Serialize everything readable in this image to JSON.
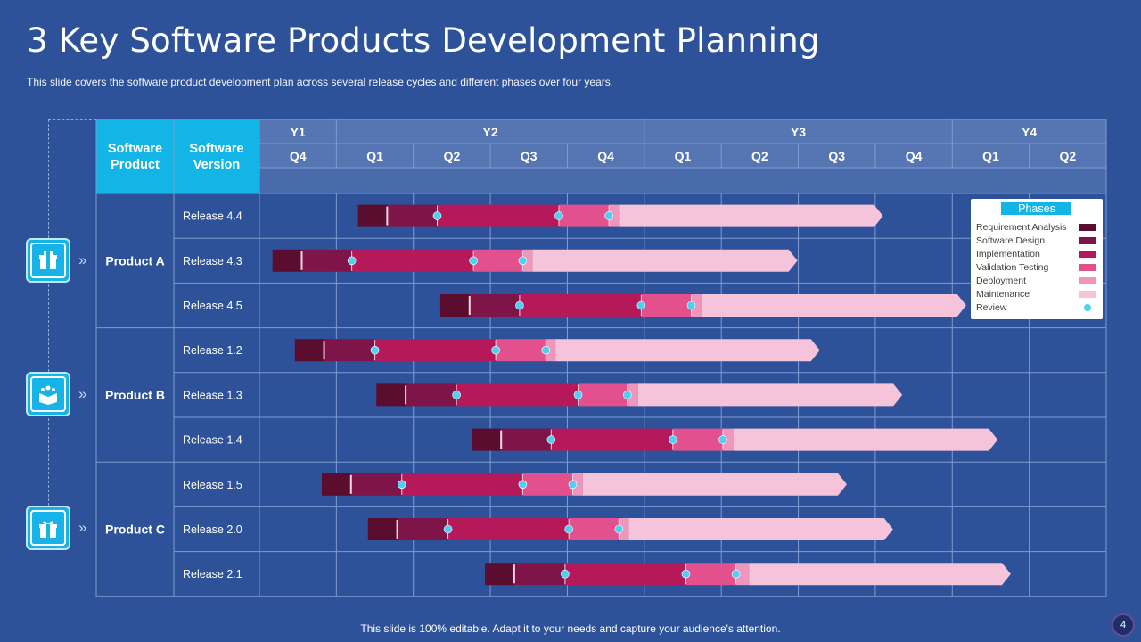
{
  "slide": {
    "title": "3 Key Software Products Development Planning",
    "subtitle": "This slide covers the software product development plan across several release cycles and different phases over four years.",
    "footer": "This slide is 100% editable. Adapt it to your needs and capture your audience's attention.",
    "page_number": "4"
  },
  "table": {
    "col_product": "Software Product",
    "col_version": "Software Version",
    "years": [
      {
        "label": "Y1",
        "quarters": 1
      },
      {
        "label": "Y2",
        "quarters": 4
      },
      {
        "label": "Y3",
        "quarters": 4
      },
      {
        "label": "Y4",
        "quarters": 2
      }
    ],
    "quarters": [
      "Q4",
      "Q1",
      "Q2",
      "Q3",
      "Q4",
      "Q1",
      "Q2",
      "Q3",
      "Q4",
      "Q1",
      "Q2"
    ]
  },
  "products": [
    {
      "name": "Product A",
      "releases": [
        "Release 4.4",
        "Release 4.3",
        "Release 4.5"
      ]
    },
    {
      "name": "Product B",
      "releases": [
        "Release 1.2",
        "Release 1.3",
        "Release 1.4"
      ]
    },
    {
      "name": "Product C",
      "releases": [
        "Release 1.5",
        "Release 2.0",
        "Release 2.1"
      ]
    }
  ],
  "legend": {
    "title": "Phases",
    "items": [
      {
        "label": "Requirement Analysis",
        "color": "#5a0d2e"
      },
      {
        "label": "Software Design",
        "color": "#7e1448"
      },
      {
        "label": "Implementation",
        "color": "#b5195a"
      },
      {
        "label": "Validation Testing",
        "color": "#e2508d"
      },
      {
        "label": "Deployment",
        "color": "#ee96bc"
      },
      {
        "label": "Maintenance",
        "color": "#f5c4da"
      },
      {
        "label": "Review",
        "color": "#4fd0f0"
      }
    ]
  },
  "colors": {
    "background": "#2d5299",
    "header_cyan": "#12b5e5",
    "header_blue": "#5575b3",
    "grid_line": "#7f9bd2"
  },
  "chart_data": {
    "type": "gantt",
    "time_unit": "quarter index (0 = Y1 Q4 start, 11 = end of Y4 Q2)",
    "phases": [
      "Requirement Analysis",
      "Software Design",
      "Implementation",
      "Validation Testing",
      "Deployment",
      "Maintenance"
    ],
    "tasks": [
      {
        "release": "Release 4.4",
        "product": "Product A",
        "boundaries": [
          1.28,
          1.66,
          2.31,
          3.89,
          4.54,
          4.67,
          8.1
        ],
        "reviews": [
          2.31,
          3.89,
          4.54
        ]
      },
      {
        "release": "Release 4.3",
        "product": "Product A",
        "boundaries": [
          0.17,
          0.55,
          1.2,
          2.78,
          3.42,
          3.55,
          6.99
        ],
        "reviews": [
          1.2,
          2.78,
          3.42
        ]
      },
      {
        "release": "Release 4.5",
        "product": "Product A",
        "boundaries": [
          2.35,
          2.73,
          3.38,
          4.96,
          5.61,
          5.74,
          9.18
        ],
        "reviews": [
          3.38,
          4.96,
          5.61
        ]
      },
      {
        "release": "Release 1.2",
        "product": "Product B",
        "boundaries": [
          0.46,
          0.84,
          1.5,
          3.07,
          3.72,
          3.85,
          7.28
        ],
        "reviews": [
          1.5,
          3.07,
          3.72
        ]
      },
      {
        "release": "Release 1.3",
        "product": "Product B",
        "boundaries": [
          1.52,
          1.9,
          2.56,
          4.14,
          4.78,
          4.92,
          8.35
        ],
        "reviews": [
          2.56,
          4.14,
          4.78
        ]
      },
      {
        "release": "Release 1.4",
        "product": "Product B",
        "boundaries": [
          2.76,
          3.14,
          3.79,
          5.37,
          6.02,
          6.16,
          9.59
        ],
        "reviews": [
          3.79,
          5.37,
          6.02
        ]
      },
      {
        "release": "Release 1.5",
        "product": "Product C",
        "boundaries": [
          0.81,
          1.19,
          1.85,
          3.42,
          4.07,
          4.2,
          7.63
        ],
        "reviews": [
          1.85,
          3.42,
          4.07
        ]
      },
      {
        "release": "Release 2.0",
        "product": "Product C",
        "boundaries": [
          1.41,
          1.79,
          2.45,
          4.02,
          4.67,
          4.8,
          8.23
        ],
        "reviews": [
          2.45,
          4.02,
          4.67
        ]
      },
      {
        "release": "Release 2.1",
        "product": "Product C",
        "boundaries": [
          2.93,
          3.31,
          3.97,
          5.54,
          6.19,
          6.36,
          9.76
        ],
        "reviews": [
          3.97,
          5.54,
          6.19
        ]
      }
    ]
  }
}
